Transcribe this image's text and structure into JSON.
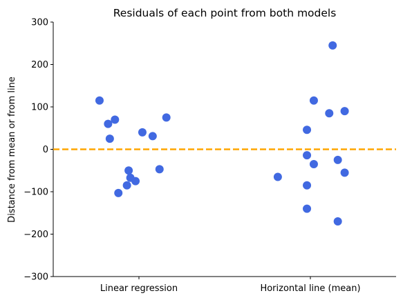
{
  "chart_data": {
    "type": "scatter",
    "title": "Residuals of each point from both models",
    "xlabel": "",
    "ylabel": "Distance from mean or from line",
    "categories": [
      "Linear regression",
      "Horizontal line (mean)"
    ],
    "ylim": [
      -300,
      300
    ],
    "yticks": [
      -300,
      -200,
      -100,
      0,
      100,
      200,
      300
    ],
    "ytick_labels": [
      "−300",
      "−200",
      "−100",
      "0",
      "100",
      "200",
      "300"
    ],
    "grid": false,
    "legend": "none",
    "reference_line": {
      "y": 0,
      "style": "dashed",
      "color": "#FFA500"
    },
    "point_color": "#4169E1",
    "series": [
      {
        "category": "Linear regression",
        "points": [
          {
            "jitter": -0.23,
            "y": 115
          },
          {
            "jitter": -0.18,
            "y": 60
          },
          {
            "jitter": -0.14,
            "y": 70
          },
          {
            "jitter": -0.17,
            "y": 25
          },
          {
            "jitter": 0.02,
            "y": 40
          },
          {
            "jitter": 0.08,
            "y": 31
          },
          {
            "jitter": 0.16,
            "y": 75
          },
          {
            "jitter": -0.06,
            "y": -50
          },
          {
            "jitter": -0.05,
            "y": -67
          },
          {
            "jitter": -0.02,
            "y": -75
          },
          {
            "jitter": -0.07,
            "y": -85
          },
          {
            "jitter": 0.12,
            "y": -47
          },
          {
            "jitter": -0.12,
            "y": -103
          }
        ]
      },
      {
        "category": "Horizontal line (mean)",
        "points": [
          {
            "jitter": 0.13,
            "y": 245
          },
          {
            "jitter": 0.02,
            "y": 115
          },
          {
            "jitter": 0.11,
            "y": 85
          },
          {
            "jitter": 0.2,
            "y": 90
          },
          {
            "jitter": -0.02,
            "y": 46
          },
          {
            "jitter": -0.02,
            "y": -14
          },
          {
            "jitter": 0.02,
            "y": -35
          },
          {
            "jitter": 0.16,
            "y": -25
          },
          {
            "jitter": 0.2,
            "y": -55
          },
          {
            "jitter": -0.19,
            "y": -65
          },
          {
            "jitter": -0.02,
            "y": -85
          },
          {
            "jitter": -0.02,
            "y": -140
          },
          {
            "jitter": 0.16,
            "y": -170
          }
        ]
      }
    ]
  }
}
